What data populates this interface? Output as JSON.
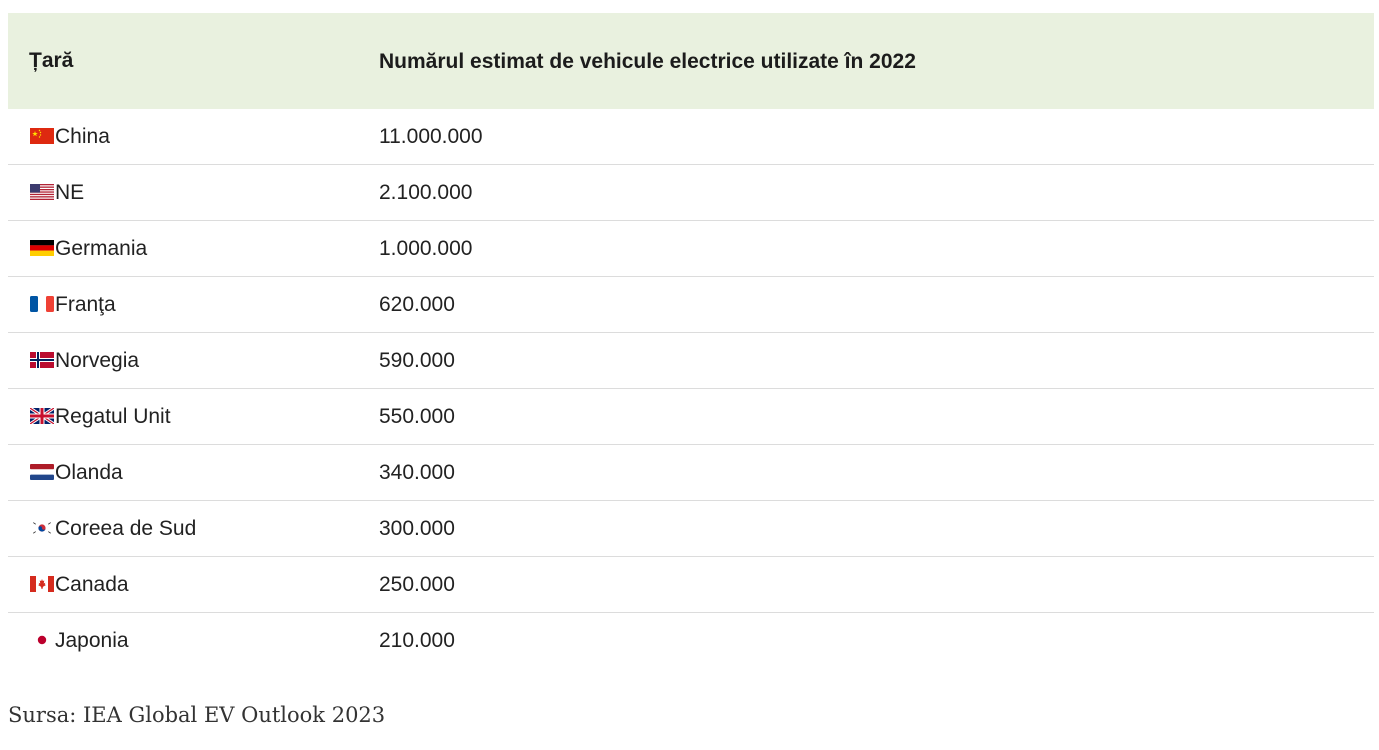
{
  "table": {
    "headers": {
      "country": "Țară",
      "value": "Numărul estimat de vehicule electrice utilizate în 2022"
    },
    "rows": [
      {
        "flag": "china-flag-icon",
        "country": "China",
        "value": "11.000.000"
      },
      {
        "flag": "usa-flag-icon",
        "country": "NE",
        "value": "2.100.000"
      },
      {
        "flag": "germany-flag-icon",
        "country": "Germania",
        "value": "1.000.000"
      },
      {
        "flag": "france-flag-icon",
        "country": "Franţa",
        "value": "620.000"
      },
      {
        "flag": "norway-flag-icon",
        "country": "Norvegia",
        "value": "590.000"
      },
      {
        "flag": "uk-flag-icon",
        "country": "Regatul Unit",
        "value": "550.000"
      },
      {
        "flag": "netherlands-flag-icon",
        "country": "Olanda",
        "value": "340.000"
      },
      {
        "flag": "south-korea-flag-icon",
        "country": "Coreea de Sud",
        "value": "300.000"
      },
      {
        "flag": "canada-flag-icon",
        "country": "Canada",
        "value": "250.000"
      },
      {
        "flag": "japan-flag-icon",
        "country": "Japonia",
        "value": "210.000"
      }
    ]
  },
  "source": "Sursa: IEA Global EV Outlook 2023",
  "colors": {
    "header_background": "#e9f1df",
    "row_divider": "#dcdcdc"
  }
}
